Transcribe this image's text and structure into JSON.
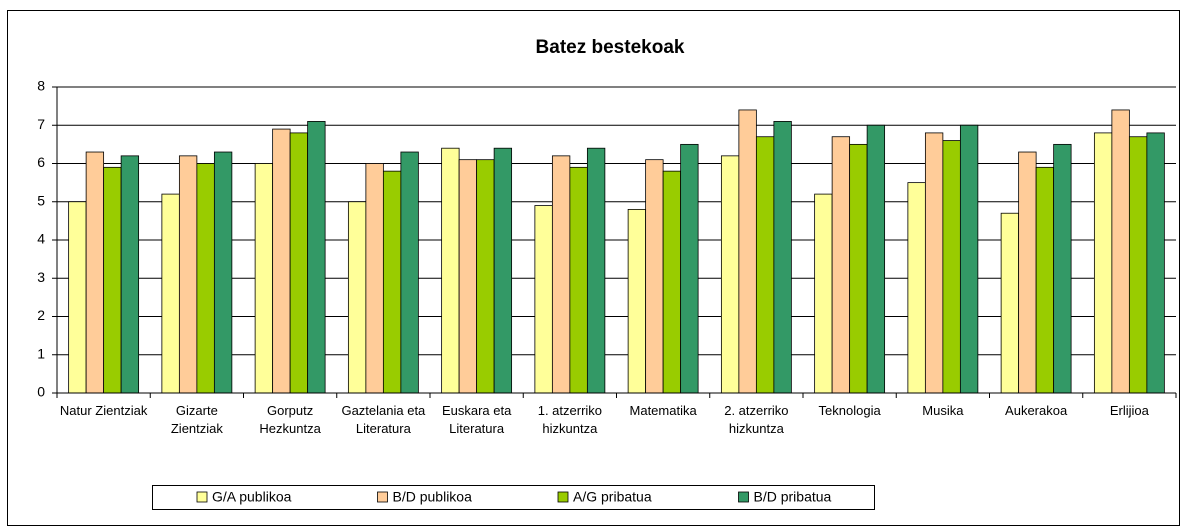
{
  "chart_data": {
    "type": "bar",
    "title": "Batez bestekoak",
    "categories": [
      "Natur Zientziak",
      "Gizarte Zientziak",
      "Gorputz Hezkuntza",
      "Gaztelania eta Literatura",
      "Euskara eta Literatura",
      "1. atzerriko hizkuntza",
      "Matematika",
      "2. atzerriko hizkuntza",
      "Teknologia",
      "Musika",
      "Aukerakoa",
      "Erlijioa"
    ],
    "series": [
      {
        "name": "G/A publikoa",
        "color": "#ffff99",
        "values": [
          5.0,
          5.2,
          6.0,
          5.0,
          6.4,
          4.9,
          4.8,
          6.2,
          5.2,
          5.5,
          4.7,
          6.8
        ]
      },
      {
        "name": "B/D publikoa",
        "color": "#ffcc99",
        "values": [
          6.3,
          6.2,
          6.9,
          6.0,
          6.1,
          6.2,
          6.1,
          7.4,
          6.7,
          6.8,
          6.3,
          7.4
        ]
      },
      {
        "name": "A/G pribatua",
        "color": "#99cc00",
        "values": [
          5.9,
          6.0,
          6.8,
          5.8,
          6.1,
          5.9,
          5.8,
          6.7,
          6.5,
          6.6,
          5.9,
          6.7
        ]
      },
      {
        "name": "B/D pribatua",
        "color": "#339966",
        "values": [
          6.2,
          6.3,
          7.1,
          6.3,
          6.4,
          6.4,
          6.5,
          7.1,
          7.0,
          7.0,
          6.5,
          6.8
        ]
      }
    ],
    "ylim": [
      0,
      8
    ],
    "yticks": [
      0,
      1,
      2,
      3,
      4,
      5,
      6,
      7,
      8
    ],
    "grid": true,
    "legend": "bottom"
  }
}
